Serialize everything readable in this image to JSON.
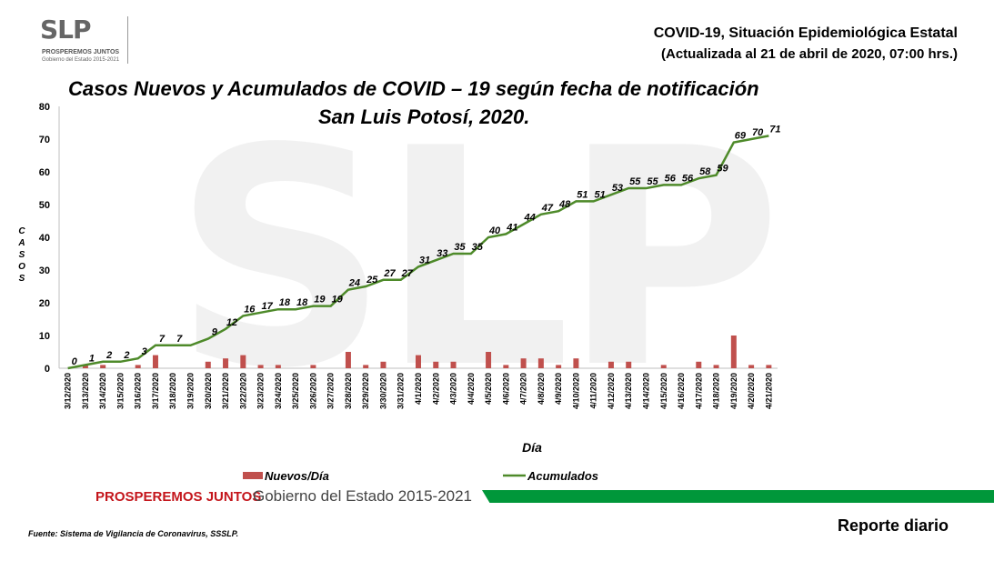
{
  "logo": {
    "mark": "SLP",
    "tagline": "PROSPEREMOS JUNTOS",
    "subtitle": "Gobierno del Estado 2015-2021"
  },
  "watermark": "SLP",
  "header": {
    "title": "COVID-19, Situación Epidemiológica Estatal",
    "subtitle": "(Actualizada al 21 de abril de 2020, 07:00 hrs.)"
  },
  "chart_data": {
    "type": "bar+line",
    "title_line1": "Casos Nuevos y Acumulados de COVID – 19 según fecha de notificación",
    "title_line2": "San Luis Potosí, 2020.",
    "xlabel": "Día",
    "ylabel": "CASOS",
    "ylim": [
      0,
      80
    ],
    "yticks": [
      0,
      10,
      20,
      30,
      40,
      50,
      60,
      70,
      80
    ],
    "grid": false,
    "legend_position": "bottom",
    "categories": [
      "3/12/2020",
      "3/13/2020",
      "3/14/2020",
      "3/15/2020",
      "3/16/2020",
      "3/17/2020",
      "3/18/2020",
      "3/19/2020",
      "3/20/2020",
      "3/21/2020",
      "3/22/2020",
      "3/23/2020",
      "3/24/2020",
      "3/25/2020",
      "3/26/2020",
      "3/27/2020",
      "3/28/2020",
      "3/29/2020",
      "3/30/2020",
      "3/31/2020",
      "4/1/2020",
      "4/2/2020",
      "4/3/2020",
      "4/4/2020",
      "4/5/2020",
      "4/6/2020",
      "4/7/2020",
      "4/8/2020",
      "4/9/2020",
      "4/10/2020",
      "4/11/2020",
      "4/12/2020",
      "4/13/2020",
      "4/14/2020",
      "4/15/2020",
      "4/16/2020",
      "4/17/2020",
      "4/18/2020",
      "4/19/2020",
      "4/20/2020",
      "4/21/2020"
    ],
    "series": [
      {
        "name": "Nuevos/Día",
        "type": "bar",
        "color": "#c0504d",
        "values": [
          0,
          1,
          1,
          0,
          1,
          4,
          0,
          0,
          2,
          3,
          4,
          1,
          1,
          0,
          1,
          0,
          5,
          1,
          2,
          0,
          4,
          2,
          2,
          0,
          5,
          1,
          3,
          3,
          1,
          3,
          0,
          2,
          2,
          0,
          1,
          0,
          2,
          1,
          10,
          1,
          1
        ]
      },
      {
        "name": "Acumulados",
        "type": "line",
        "color": "#4e8a2a",
        "values": [
          0,
          1,
          2,
          2,
          3,
          7,
          7,
          7,
          9,
          12,
          16,
          17,
          18,
          18,
          19,
          19,
          24,
          25,
          27,
          27,
          31,
          33,
          35,
          35,
          40,
          41,
          44,
          47,
          48,
          51,
          51,
          53,
          55,
          55,
          56,
          56,
          58,
          59,
          69,
          70,
          71
        ],
        "labels": [
          "0",
          "1",
          "2",
          "2",
          "3",
          "7",
          "7",
          "",
          "9",
          "12",
          "16",
          "17",
          "18",
          "18",
          "19",
          "19",
          "24",
          "25",
          "27",
          "27",
          "31",
          "33",
          "35",
          "35",
          "40",
          "41",
          "44",
          "47",
          "48",
          "51",
          "51",
          "53",
          "55",
          "55",
          "56",
          "56",
          "58",
          "59",
          "69",
          "70",
          "71"
        ]
      }
    ]
  },
  "footer": {
    "tagline": "PROSPEREMOS JUNTOS",
    "government": "Gobierno del Estado 2015-2021"
  },
  "source": "Fuente: Sistema de Vigilancia de Coronavirus, SSSLP.",
  "report": "Reporte diario"
}
